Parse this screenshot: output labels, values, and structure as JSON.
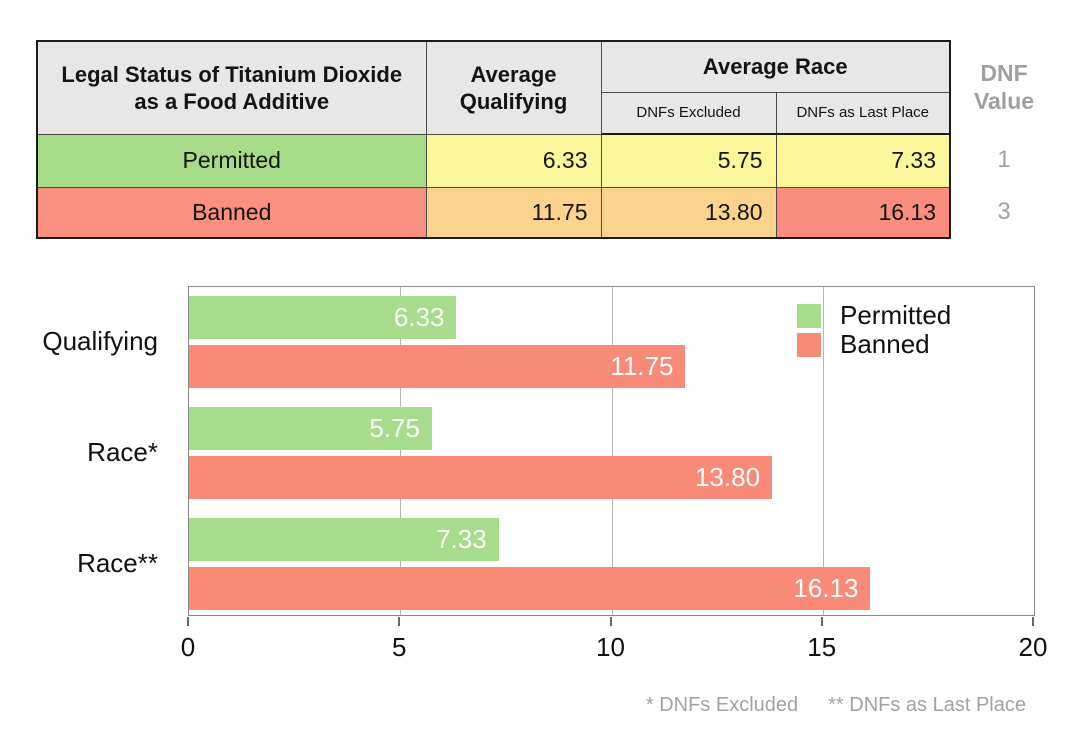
{
  "colors": {
    "header_bg": "#e7e7e7",
    "permitted_green": "#a6db87",
    "banned_red": "#f9907f",
    "value_yellow": "#fbf69a",
    "value_orange": "#fbd38d",
    "value_salmon": "#f98e7e",
    "muted_text": "#a0a0a0",
    "grid_gray": "#b5b5b5"
  },
  "table": {
    "col_status_header": "Legal Status of Titanium Dioxide as a Food Additive",
    "col_qualifying_header": "Average Qualifying",
    "col_race_header": "Average Race",
    "sub_dnfs_excluded": "DNFs Excluded",
    "sub_dnfs_last": "DNFs as Last Place",
    "dnf_value_header": "DNF Value",
    "rows": [
      {
        "status": "Permitted",
        "avg_qualifying": "6.33",
        "race_dnfs_excluded": "5.75",
        "race_dnfs_last": "7.33",
        "dnf_value": "1"
      },
      {
        "status": "Banned",
        "avg_qualifying": "11.75",
        "race_dnfs_excluded": "13.80",
        "race_dnfs_last": "16.13",
        "dnf_value": "3"
      }
    ]
  },
  "chart_data": {
    "type": "bar",
    "orientation": "horizontal",
    "categories": [
      "Qualifying",
      "Race*",
      "Race**"
    ],
    "series": [
      {
        "name": "Permitted",
        "color": "#a7dc8c",
        "values": [
          6.33,
          5.75,
          7.33
        ]
      },
      {
        "name": "Banned",
        "color": "#f98a78",
        "values": [
          11.75,
          13.8,
          16.13
        ]
      }
    ],
    "xlim": [
      0,
      20
    ],
    "xticks": [
      0,
      5,
      10,
      15,
      20
    ],
    "value_label_decimals": 2,
    "grid": true,
    "legend_position": "top-right"
  },
  "footnotes": {
    "excluded": "* DNFs Excluded",
    "last_place": "** DNFs as Last Place"
  }
}
